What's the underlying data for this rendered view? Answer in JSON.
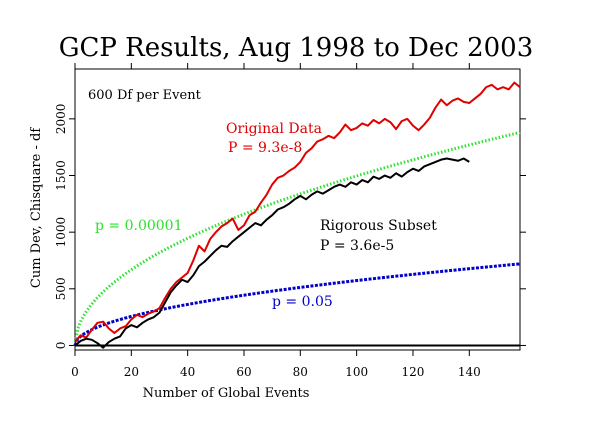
{
  "chart_data": {
    "type": "line",
    "title": "GCP Results, Aug 1998 to Dec 2003",
    "xlabel": "Number of Global Events",
    "ylabel": "Cum Dev, Chisquare - df",
    "xlim": [
      0,
      158
    ],
    "ylim": [
      -40,
      2440
    ],
    "x_ticks": [
      0,
      20,
      40,
      60,
      80,
      100,
      120,
      140
    ],
    "y_ticks": [
      0,
      500,
      1000,
      1500,
      2000
    ],
    "grid": false,
    "legend": "none",
    "annotations": {
      "df_note": "600 Df per Event"
    },
    "zero_line": {
      "color": "#000000",
      "value": 0
    },
    "series": [
      {
        "name": "Original Data",
        "label": "Original Data",
        "p_label": "P = 9.3e-8",
        "color": "#e00000",
        "style": "solid",
        "points": [
          [
            0,
            30
          ],
          [
            2,
            90
          ],
          [
            4,
            70
          ],
          [
            6,
            140
          ],
          [
            8,
            200
          ],
          [
            10,
            210
          ],
          [
            12,
            150
          ],
          [
            14,
            110
          ],
          [
            16,
            150
          ],
          [
            18,
            170
          ],
          [
            20,
            230
          ],
          [
            22,
            270
          ],
          [
            24,
            250
          ],
          [
            26,
            280
          ],
          [
            28,
            300
          ],
          [
            30,
            330
          ],
          [
            32,
            420
          ],
          [
            34,
            500
          ],
          [
            36,
            560
          ],
          [
            38,
            600
          ],
          [
            40,
            640
          ],
          [
            42,
            750
          ],
          [
            44,
            880
          ],
          [
            46,
            830
          ],
          [
            48,
            940
          ],
          [
            50,
            1000
          ],
          [
            52,
            1050
          ],
          [
            54,
            1080
          ],
          [
            56,
            1120
          ],
          [
            58,
            1020
          ],
          [
            60,
            1060
          ],
          [
            62,
            1150
          ],
          [
            64,
            1180
          ],
          [
            66,
            1260
          ],
          [
            68,
            1330
          ],
          [
            70,
            1420
          ],
          [
            72,
            1480
          ],
          [
            74,
            1500
          ],
          [
            76,
            1540
          ],
          [
            78,
            1570
          ],
          [
            80,
            1620
          ],
          [
            82,
            1700
          ],
          [
            84,
            1740
          ],
          [
            86,
            1800
          ],
          [
            88,
            1820
          ],
          [
            90,
            1850
          ],
          [
            92,
            1830
          ],
          [
            94,
            1880
          ],
          [
            96,
            1950
          ],
          [
            98,
            1900
          ],
          [
            100,
            1920
          ],
          [
            102,
            1960
          ],
          [
            104,
            1940
          ],
          [
            106,
            1990
          ],
          [
            108,
            1960
          ],
          [
            110,
            2000
          ],
          [
            112,
            1970
          ],
          [
            114,
            1910
          ],
          [
            116,
            1980
          ],
          [
            118,
            2000
          ],
          [
            120,
            1940
          ],
          [
            122,
            1900
          ],
          [
            124,
            1950
          ],
          [
            126,
            2010
          ],
          [
            128,
            2100
          ],
          [
            130,
            2170
          ],
          [
            132,
            2120
          ],
          [
            134,
            2160
          ],
          [
            136,
            2180
          ],
          [
            138,
            2150
          ],
          [
            140,
            2140
          ],
          [
            142,
            2180
          ],
          [
            144,
            2220
          ],
          [
            146,
            2280
          ],
          [
            148,
            2300
          ],
          [
            150,
            2260
          ],
          [
            152,
            2280
          ],
          [
            154,
            2260
          ],
          [
            156,
            2320
          ],
          [
            158,
            2280
          ]
        ]
      },
      {
        "name": "Rigorous Subset",
        "label": "Rigorous Subset",
        "p_label": "P = 3.6e-5",
        "color": "#000000",
        "style": "solid",
        "points": [
          [
            0,
            0
          ],
          [
            2,
            40
          ],
          [
            4,
            60
          ],
          [
            6,
            50
          ],
          [
            8,
            20
          ],
          [
            10,
            -20
          ],
          [
            12,
            30
          ],
          [
            14,
            60
          ],
          [
            16,
            80
          ],
          [
            18,
            150
          ],
          [
            20,
            180
          ],
          [
            22,
            160
          ],
          [
            24,
            200
          ],
          [
            26,
            230
          ],
          [
            28,
            250
          ],
          [
            30,
            290
          ],
          [
            32,
            380
          ],
          [
            34,
            470
          ],
          [
            36,
            530
          ],
          [
            38,
            580
          ],
          [
            40,
            560
          ],
          [
            42,
            620
          ],
          [
            44,
            700
          ],
          [
            46,
            740
          ],
          [
            48,
            790
          ],
          [
            50,
            840
          ],
          [
            52,
            880
          ],
          [
            54,
            870
          ],
          [
            56,
            920
          ],
          [
            58,
            960
          ],
          [
            60,
            1000
          ],
          [
            62,
            1040
          ],
          [
            64,
            1080
          ],
          [
            66,
            1060
          ],
          [
            68,
            1110
          ],
          [
            70,
            1150
          ],
          [
            72,
            1200
          ],
          [
            74,
            1220
          ],
          [
            76,
            1250
          ],
          [
            78,
            1290
          ],
          [
            80,
            1320
          ],
          [
            82,
            1290
          ],
          [
            84,
            1330
          ],
          [
            86,
            1360
          ],
          [
            88,
            1340
          ],
          [
            90,
            1370
          ],
          [
            92,
            1400
          ],
          [
            94,
            1420
          ],
          [
            96,
            1400
          ],
          [
            98,
            1440
          ],
          [
            100,
            1420
          ],
          [
            102,
            1460
          ],
          [
            104,
            1440
          ],
          [
            106,
            1490
          ],
          [
            108,
            1470
          ],
          [
            110,
            1500
          ],
          [
            112,
            1480
          ],
          [
            114,
            1520
          ],
          [
            116,
            1490
          ],
          [
            118,
            1530
          ],
          [
            120,
            1560
          ],
          [
            122,
            1540
          ],
          [
            124,
            1580
          ],
          [
            126,
            1600
          ],
          [
            128,
            1620
          ],
          [
            130,
            1640
          ],
          [
            132,
            1650
          ],
          [
            134,
            1640
          ],
          [
            136,
            1630
          ],
          [
            138,
            1650
          ],
          [
            140,
            1620
          ]
        ]
      },
      {
        "name": "p = 0.00001",
        "label": "p = 0.00001",
        "color": "#2ee02e",
        "style": "dotted",
        "curve": "sqrt",
        "value_at_max": 1880
      },
      {
        "name": "p = 0.05",
        "label": "p = 0.05",
        "color": "#0000cc",
        "style": "dashed",
        "curve": "sqrt",
        "value_at_max": 720
      }
    ]
  }
}
